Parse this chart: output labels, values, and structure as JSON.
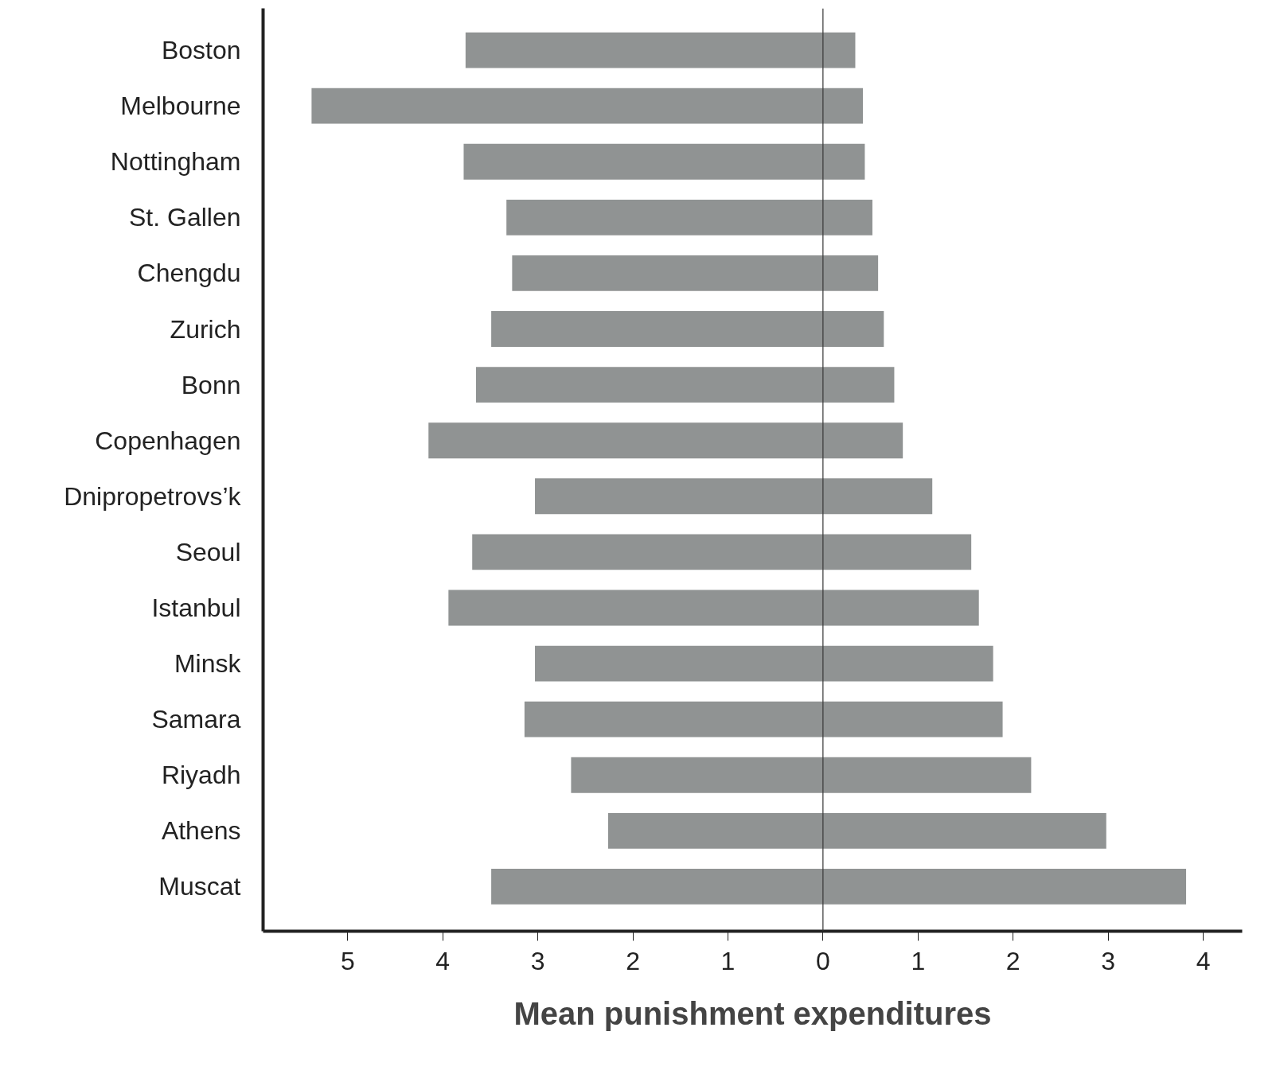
{
  "chart_data": {
    "type": "bar",
    "orientation": "horizontal",
    "xlabel": "Mean punishment expenditures",
    "categories": [
      "Boston",
      "Melbourne",
      "Nottingham",
      "St. Gallen",
      "Chengdu",
      "Zurich",
      "Bonn",
      "Copenhagen",
      "Dnipropetrovs’k",
      "Seoul",
      "Istanbul",
      "Minsk",
      "Samara",
      "Riyadh",
      "Athens",
      "Muscat"
    ],
    "series": [
      {
        "color": "#909393",
        "values": [
          -3.76,
          -5.38,
          -3.78,
          -3.33,
          -3.27,
          -3.49,
          -3.65,
          -4.15,
          -3.03,
          -3.69,
          -3.94,
          -3.03,
          -3.14,
          -2.65,
          -2.26,
          -3.49
        ]
      },
      {
        "color": "#909393",
        "values": [
          0.34,
          0.42,
          0.44,
          0.52,
          0.58,
          0.64,
          0.75,
          0.84,
          1.15,
          1.56,
          1.64,
          1.79,
          1.89,
          2.19,
          2.98,
          3.82
        ]
      }
    ],
    "xlim": [
      -5.89,
      4.41
    ],
    "xticks": [
      {
        "value": -5,
        "label": "5"
      },
      {
        "value": -4,
        "label": "4"
      },
      {
        "value": -3,
        "label": "3"
      },
      {
        "value": -2,
        "label": "2"
      },
      {
        "value": -1,
        "label": "1"
      },
      0,
      1,
      2,
      3,
      4
    ],
    "ref_lines": [
      {
        "axis": "x",
        "value": 0,
        "color": "#333333"
      }
    ],
    "stacked": true,
    "grid": false
  }
}
